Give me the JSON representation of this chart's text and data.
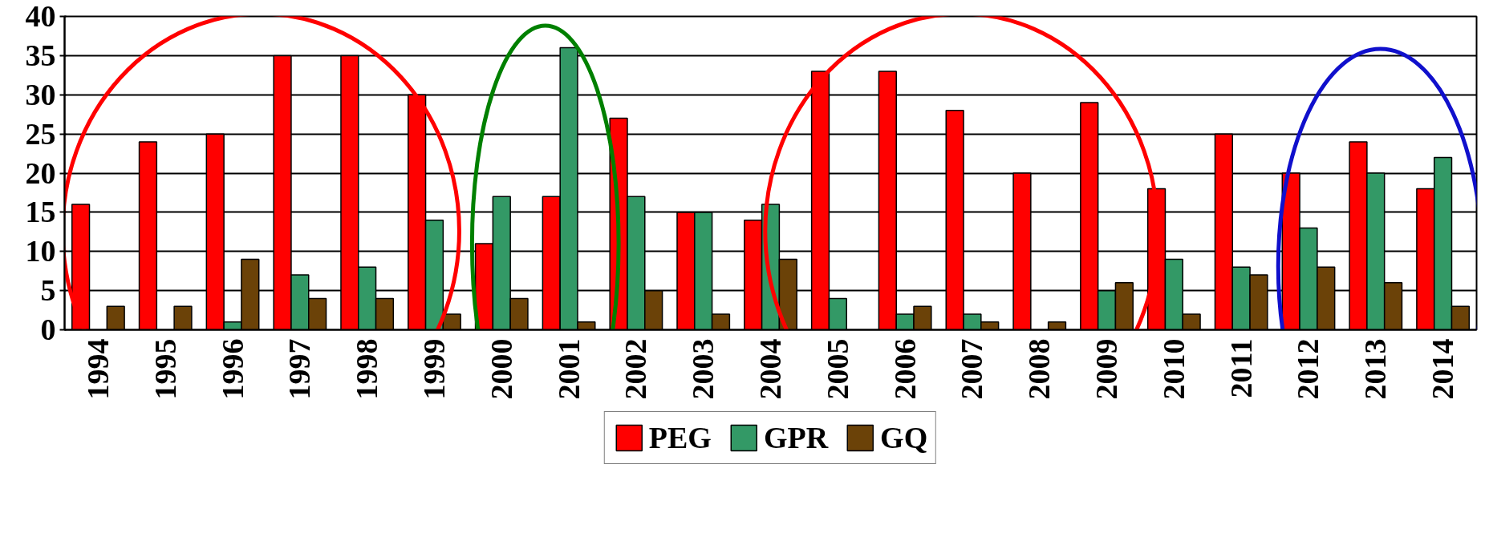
{
  "chart_data": {
    "type": "bar",
    "categories": [
      "1994",
      "1995",
      "1996",
      "1997",
      "1998",
      "1999",
      "2000",
      "2001",
      "2002",
      "2003",
      "2004",
      "2005",
      "2006",
      "2007",
      "2008",
      "2009",
      "2010",
      "2011",
      "2012",
      "2013",
      "2014"
    ],
    "series": [
      {
        "name": "PEG",
        "color": "#ff0000",
        "values": [
          16,
          24,
          25,
          35,
          35,
          30,
          11,
          17,
          27,
          15,
          14,
          33,
          33,
          28,
          20,
          29,
          18,
          25,
          20,
          24,
          18
        ]
      },
      {
        "name": "GPR",
        "color": "#339966",
        "values": [
          null,
          null,
          1,
          7,
          8,
          14,
          17,
          36,
          17,
          15,
          16,
          4,
          2,
          2,
          null,
          5,
          9,
          8,
          13,
          20,
          22
        ]
      },
      {
        "name": "GQ",
        "color": "#6b4208",
        "values": [
          3,
          3,
          9,
          4,
          4,
          2,
          4,
          1,
          5,
          2,
          9,
          null,
          3,
          1,
          1,
          6,
          2,
          7,
          8,
          6,
          3
        ]
      }
    ],
    "ylim": [
      0,
      40
    ],
    "yticks": [
      0,
      5,
      10,
      15,
      20,
      25,
      30,
      35,
      40
    ],
    "grid": "y",
    "legend": "bottom"
  }
}
